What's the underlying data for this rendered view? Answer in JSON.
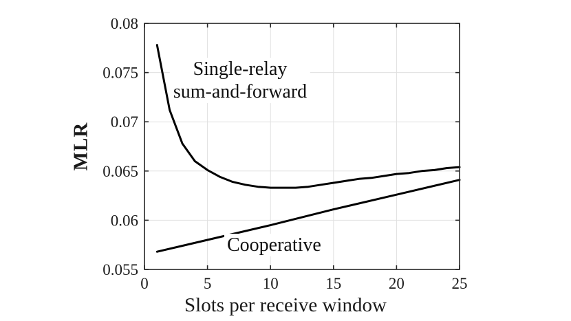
{
  "chart_data": {
    "type": "line",
    "title": "",
    "xlabel": "Slots per receive window",
    "ylabel": "MLR",
    "xlim": [
      0,
      25
    ],
    "ylim": [
      0.055,
      0.08
    ],
    "x_ticks": [
      0,
      5,
      10,
      15,
      20,
      25
    ],
    "x_tick_labels": [
      "0",
      "5",
      "10",
      "15",
      "20",
      "25"
    ],
    "y_ticks": [
      0.055,
      0.06,
      0.065,
      0.07,
      0.075,
      0.08
    ],
    "y_tick_labels": [
      "0.055",
      "0.06",
      "0.065",
      "0.07",
      "0.075",
      "0.08"
    ],
    "grid": true,
    "legend_position": "none",
    "series": [
      {
        "name": "Single-relay sum-and-forward",
        "color": "#000000",
        "x": [
          1,
          2,
          3,
          4,
          5,
          6,
          7,
          8,
          9,
          10,
          11,
          12,
          13,
          14,
          15,
          16,
          17,
          18,
          19,
          20,
          21,
          22,
          23,
          24,
          25
        ],
        "y": [
          0.0778,
          0.0712,
          0.0678,
          0.066,
          0.0651,
          0.0644,
          0.0639,
          0.0636,
          0.0634,
          0.0633,
          0.0633,
          0.0633,
          0.0634,
          0.0636,
          0.0638,
          0.064,
          0.0642,
          0.0643,
          0.0645,
          0.0647,
          0.0648,
          0.065,
          0.0651,
          0.0653,
          0.0654
        ]
      },
      {
        "name": "Cooperative",
        "color": "#000000",
        "x": [
          1,
          5,
          10,
          15,
          20,
          25
        ],
        "y": [
          0.0568,
          0.058,
          0.0595,
          0.0611,
          0.0626,
          0.0641
        ]
      }
    ],
    "annotations": [
      {
        "lines": [
          "Single-relay",
          "sum-and-forward"
        ]
      },
      {
        "lines": [
          "Cooperative"
        ]
      }
    ],
    "colors": {
      "curve": "#000000",
      "axis": "#262626",
      "grid": "#e0e0e0",
      "text": "#1a1a1a",
      "background": "#ffffff"
    }
  }
}
